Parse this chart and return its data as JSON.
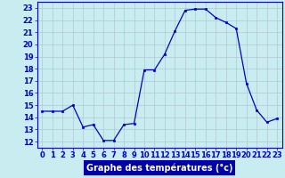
{
  "hours": [
    0,
    1,
    2,
    3,
    4,
    5,
    6,
    7,
    8,
    9,
    10,
    11,
    12,
    13,
    14,
    15,
    16,
    17,
    18,
    19,
    20,
    21,
    22,
    23
  ],
  "temperatures": [
    14.5,
    14.5,
    14.5,
    15.0,
    13.2,
    13.4,
    12.1,
    12.1,
    13.4,
    13.5,
    17.9,
    17.9,
    19.2,
    21.1,
    22.8,
    22.9,
    22.9,
    22.2,
    21.8,
    21.3,
    16.8,
    14.6,
    13.6,
    13.9
  ],
  "line_color": "#0000cc",
  "marker_color": "#0000cc",
  "bg_color": "#c8ecf0",
  "grid_color": "#b0c8d0",
  "plot_bg_color": "#c8ecf0",
  "xlabel": "Graphe des températures (°c)",
  "xlabel_color": "#0000cc",
  "ylabel_ticks": [
    12,
    13,
    14,
    15,
    16,
    17,
    18,
    19,
    20,
    21,
    22,
    23
  ],
  "xlim": [
    -0.5,
    23.5
  ],
  "ylim": [
    11.5,
    23.5
  ],
  "tick_fontsize": 6.0,
  "xlabel_fontsize": 7.0,
  "bottom_bar_color": "#0000aa",
  "bottom_bar_text_color": "#ffffff"
}
